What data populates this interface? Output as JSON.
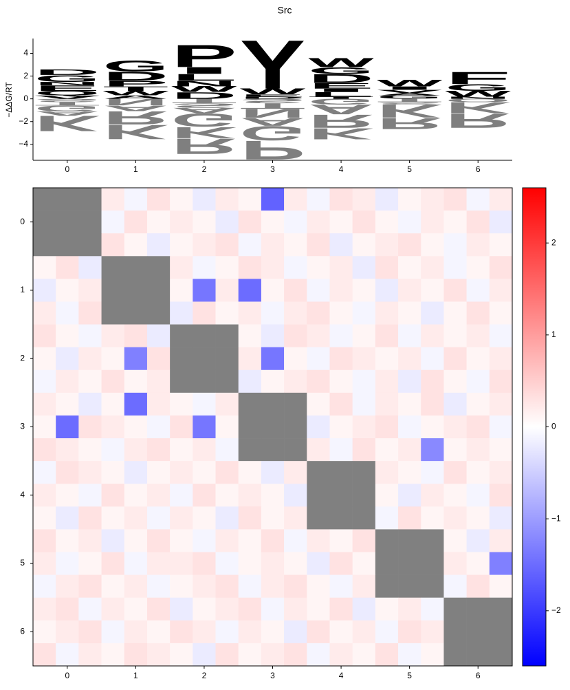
{
  "chart_data": [
    {
      "type": "logo",
      "title": "Src",
      "ylabel": "−ΔΔG/RT",
      "xlim": [
        -0.5,
        6.5
      ],
      "xticks": [
        0,
        1,
        2,
        3,
        4,
        5,
        6
      ],
      "ylim": [
        -5.4,
        5.3
      ],
      "yticks": [
        {
          "value": -4,
          "label": "−4"
        },
        {
          "value": -2,
          "label": "−2"
        },
        0,
        2,
        4
      ],
      "negative_alpha": 0.5,
      "letter_colors": {
        "G": "#008000",
        "S": "#008000",
        "T": "#008000",
        "Y": "#008000",
        "C": "#008000",
        "N": "#800080",
        "Q": "#800080",
        "K": "#0000ff",
        "R": "#0000ff",
        "H": "#0000ff",
        "D": "#ff0000",
        "E": "#ff0000",
        "A": "#000000",
        "V": "#000000",
        "L": "#000000",
        "I": "#000000",
        "P": "#000000",
        "W": "#000000",
        "F": "#000000",
        "M": "#000000"
      },
      "stacks": [
        {
          "letters": [
            "V",
            "Q",
            "E",
            "N",
            "G",
            "D",
            "S",
            "T",
            "G",
            "A",
            "K"
          ],
          "values": [
            0.3,
            0.4,
            0.5,
            0.3,
            0.6,
            0.5,
            -0.3,
            -0.3,
            -0.5,
            -0.4,
            -1.4
          ]
        },
        {
          "letters": [
            "A",
            "W",
            "T",
            "P",
            "D",
            "G",
            "N",
            "A",
            "R",
            "K"
          ],
          "values": [
            0.3,
            0.4,
            0.4,
            0.5,
            0.8,
            1.0,
            -0.6,
            -0.5,
            -1.2,
            -1.3
          ]
        },
        {
          "letters": [
            "D",
            "W",
            "N",
            "L",
            "I",
            "P",
            "T",
            "S",
            "A",
            "G",
            "K",
            "R"
          ],
          "values": [
            0.6,
            0.5,
            0.5,
            0.6,
            0.6,
            2.0,
            -0.4,
            -0.4,
            -0.5,
            -1.2,
            -1.0,
            -1.4
          ]
        },
        {
          "letters": [
            "D",
            "E",
            "W",
            "Y",
            "S",
            "T",
            "N",
            "A",
            "G",
            "P"
          ],
          "values": [
            0.2,
            0.2,
            0.5,
            4.4,
            -0.4,
            -0.5,
            -0.8,
            -0.7,
            -1.3,
            -1.7
          ]
        },
        {
          "letters": [
            "T",
            "L",
            "I",
            "E",
            "D",
            "G",
            "W",
            "G",
            "A",
            "R",
            "K"
          ],
          "values": [
            0.2,
            0.4,
            0.3,
            0.5,
            0.8,
            0.6,
            0.8,
            -0.5,
            -0.9,
            -1.2,
            -1.0
          ]
        },
        {
          "letters": [
            "G",
            "A",
            "V",
            "I",
            "W",
            "T",
            "S",
            "K",
            "R"
          ],
          "values": [
            0.3,
            0.2,
            0.3,
            0.3,
            0.6,
            -0.3,
            -0.2,
            -1.2,
            -1.0
          ]
        },
        {
          "letters": [
            "N",
            "W",
            "G",
            "F",
            "Q",
            "K",
            "R"
          ],
          "values": [
            0.2,
            0.5,
            0.6,
            1.1,
            -0.3,
            -1.0,
            -1.3
          ]
        }
      ]
    },
    {
      "type": "heatmap",
      "xlim": [
        -0.5,
        6.5
      ],
      "ylim": [
        6.5,
        -0.5
      ],
      "xticks": [
        0,
        1,
        2,
        3,
        4,
        5,
        6
      ],
      "yticks": [
        0,
        1,
        2,
        3,
        4,
        5,
        6
      ],
      "clim": [
        -2.6,
        2.6
      ],
      "cticks": [
        {
          "value": -2,
          "label": "−2"
        },
        {
          "value": -1,
          "label": "−1"
        },
        0,
        1,
        2
      ],
      "cmap": [
        "#0000ff",
        "#ffffff",
        "#ff0000"
      ],
      "masked_color": "#808080",
      "values": [
        [
          null,
          null,
          null,
          0.2,
          -0.1,
          0.3,
          0.1,
          -0.2,
          0.2,
          0.1,
          -1.6,
          0.2,
          -0.1,
          0.3,
          0.2,
          -0.2,
          0.1,
          0.2,
          0.3,
          -0.1,
          0.2
        ],
        [
          null,
          null,
          null,
          -0.1,
          0.3,
          0.1,
          0.2,
          0.1,
          -0.2,
          0.3,
          0.1,
          -0.1,
          0.2,
          0.1,
          0.3,
          0.1,
          -0.1,
          0.2,
          0.1,
          0.3,
          -0.2
        ],
        [
          null,
          null,
          null,
          0.3,
          0.1,
          -0.2,
          0.1,
          0.2,
          0.3,
          -0.1,
          0.2,
          0.1,
          0.3,
          -0.2,
          0.1,
          0.2,
          0.3,
          0.1,
          -0.1,
          0.2,
          0.1
        ],
        [
          0.1,
          0.3,
          -0.2,
          null,
          null,
          null,
          0.2,
          -0.1,
          0.1,
          0.3,
          0.2,
          -0.1,
          0.1,
          0.2,
          -0.2,
          0.3,
          0.1,
          0.2,
          -0.1,
          0.1,
          0.3
        ],
        [
          -0.2,
          0.1,
          0.2,
          null,
          null,
          null,
          0.1,
          -1.4,
          0.2,
          -1.5,
          0.1,
          0.3,
          -0.1,
          0.2,
          0.1,
          -0.2,
          0.2,
          0.1,
          0.3,
          -0.1,
          0.2
        ],
        [
          0.2,
          -0.1,
          0.3,
          null,
          null,
          null,
          -0.2,
          0.3,
          0.1,
          0.2,
          -0.1,
          0.2,
          0.3,
          0.1,
          -0.1,
          0.2,
          0.1,
          -0.2,
          0.1,
          0.3,
          0.1
        ],
        [
          0.3,
          0.1,
          -0.1,
          0.2,
          0.3,
          -0.2,
          null,
          null,
          null,
          0.1,
          -0.2,
          0.3,
          0.2,
          -0.1,
          0.1,
          0.3,
          -0.1,
          0.2,
          0.1,
          0.2,
          -0.1
        ],
        [
          0.1,
          -0.2,
          0.2,
          0.1,
          -1.3,
          0.3,
          null,
          null,
          null,
          0.2,
          -1.4,
          0.1,
          -0.1,
          0.3,
          0.2,
          0.1,
          0.2,
          -0.1,
          0.3,
          0.1,
          0.2
        ],
        [
          -0.1,
          0.2,
          0.1,
          0.3,
          0.1,
          0.2,
          null,
          null,
          null,
          -0.2,
          0.1,
          0.2,
          0.3,
          0.1,
          -0.1,
          0.2,
          -0.2,
          0.3,
          0.1,
          -0.1,
          0.3
        ],
        [
          0.2,
          0.1,
          -0.2,
          0.1,
          -1.5,
          0.2,
          0.1,
          -0.1,
          0.2,
          null,
          null,
          null,
          0.1,
          0.3,
          -0.1,
          0.2,
          0.1,
          0.3,
          -0.2,
          0.1,
          0.2
        ],
        [
          0.1,
          -1.5,
          0.3,
          0.2,
          0.1,
          -0.1,
          0.3,
          -1.4,
          0.1,
          null,
          null,
          null,
          -0.2,
          0.1,
          0.2,
          0.3,
          -0.1,
          0.1,
          0.2,
          0.3,
          -0.1
        ],
        [
          0.3,
          0.2,
          0.1,
          -0.1,
          0.2,
          0.3,
          0.1,
          0.2,
          -0.1,
          null,
          null,
          null,
          0.2,
          -0.1,
          0.3,
          0.1,
          0.2,
          -1.2,
          0.1,
          0.2,
          0.1
        ],
        [
          -0.1,
          0.3,
          0.2,
          0.1,
          -0.2,
          0.1,
          0.2,
          0.1,
          0.3,
          0.1,
          -0.2,
          0.2,
          null,
          null,
          null,
          0.2,
          0.1,
          -0.1,
          0.3,
          0.1,
          0.2
        ],
        [
          0.2,
          0.1,
          -0.1,
          0.3,
          0.1,
          0.2,
          -0.1,
          0.3,
          0.1,
          0.2,
          0.1,
          -0.2,
          null,
          null,
          null,
          0.1,
          -0.2,
          0.2,
          0.1,
          -0.1,
          0.3
        ],
        [
          0.1,
          -0.2,
          0.3,
          0.1,
          0.2,
          -0.1,
          0.2,
          0.1,
          -0.2,
          0.3,
          0.1,
          0.2,
          null,
          null,
          null,
          -0.1,
          0.3,
          0.1,
          0.2,
          0.1,
          -0.2
        ],
        [
          0.3,
          0.1,
          0.2,
          -0.2,
          0.1,
          0.3,
          0.1,
          -0.1,
          0.2,
          0.1,
          0.3,
          -0.1,
          0.2,
          0.1,
          0.3,
          null,
          null,
          null,
          0.1,
          -0.2,
          0.2
        ],
        [
          0.2,
          -0.1,
          0.1,
          0.3,
          -0.1,
          0.2,
          0.2,
          0.3,
          -0.1,
          0.1,
          0.2,
          0.1,
          -0.2,
          0.3,
          0.1,
          null,
          null,
          null,
          0.2,
          0.1,
          -1.3
        ],
        [
          -0.1,
          0.2,
          0.3,
          0.1,
          0.2,
          -0.1,
          0.1,
          0.2,
          0.3,
          -0.1,
          0.2,
          0.3,
          0.1,
          -0.1,
          0.2,
          null,
          null,
          null,
          -0.1,
          0.3,
          0.1
        ],
        [
          0.2,
          0.3,
          -0.1,
          0.2,
          0.1,
          0.3,
          -0.2,
          0.1,
          0.2,
          0.3,
          -0.1,
          0.2,
          0.1,
          0.3,
          -0.2,
          0.1,
          0.2,
          -0.1,
          null,
          null,
          null
        ],
        [
          0.1,
          0.2,
          0.3,
          -0.1,
          0.2,
          0.1,
          0.3,
          0.2,
          -0.1,
          0.2,
          0.1,
          -0.2,
          0.3,
          0.1,
          0.2,
          -0.1,
          0.3,
          0.2,
          null,
          null,
          null
        ],
        [
          0.3,
          -0.1,
          0.2,
          0.1,
          0.3,
          0.2,
          0.1,
          -0.2,
          0.3,
          0.1,
          0.2,
          0.3,
          -0.1,
          0.2,
          0.1,
          0.3,
          -0.1,
          0.1,
          null,
          null,
          null
        ]
      ]
    }
  ]
}
